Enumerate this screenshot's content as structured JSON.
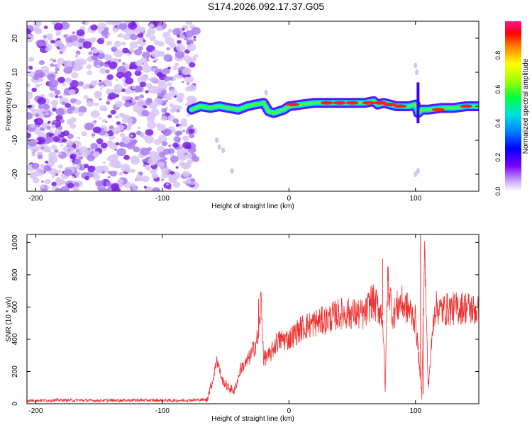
{
  "title": "S174.2026.092.17.37.G05",
  "chart_data": [
    {
      "type": "heatmap",
      "name": "spectrogram",
      "xlabel": "Height of straight line (km)",
      "ylabel": "Frequency (Hz)",
      "xlim": [
        -207,
        150
      ],
      "ylim": [
        -25,
        25
      ],
      "xticks": [
        -200,
        -100,
        0,
        100
      ],
      "yticks": [
        -20,
        -10,
        0,
        10,
        20
      ],
      "noise_region_x": [
        -207,
        -73
      ],
      "signal_trace": {
        "x": [
          -77,
          -70,
          -62,
          -55,
          -48,
          -40,
          -33,
          -27,
          -20,
          -16,
          -12,
          -8,
          -4,
          0,
          10,
          20,
          30,
          40,
          50,
          60,
          67,
          70,
          75,
          80,
          85,
          90,
          95,
          100,
          102,
          105,
          110,
          120,
          130,
          140,
          150
        ],
        "y": [
          -1,
          0,
          -0.5,
          0,
          -0.5,
          -1,
          0,
          0.5,
          1,
          -1.5,
          -2,
          -1.5,
          -1,
          0,
          0.5,
          1,
          1,
          1,
          1,
          1,
          1.5,
          0.5,
          1,
          0.5,
          0,
          0,
          0,
          0.5,
          -2,
          -1,
          -1,
          -0.5,
          -0.5,
          0,
          0
        ]
      },
      "colorbar": {
        "label": "Normalized spectral amplitude",
        "ticks": [
          "0.0",
          "0.2",
          "0.4",
          "0.6",
          "0.8"
        ]
      }
    },
    {
      "type": "line",
      "name": "snr",
      "xlabel": "Height of straight line (km)",
      "ylabel": "SNR (10 * v/v)",
      "xlim": [
        -207,
        150
      ],
      "ylim": [
        0,
        1050
      ],
      "xticks": [
        -200,
        -100,
        0,
        100
      ],
      "yticks": [
        0,
        200,
        400,
        600,
        800,
        1000
      ],
      "series": [
        {
          "name": "SNR",
          "color": "#ee3333",
          "x": [
            -207,
            -180,
            -150,
            -120,
            -90,
            -65,
            -60,
            -57,
            -53,
            -48,
            -43,
            -38,
            -34,
            -30,
            -24,
            -22,
            -20,
            -15,
            -10,
            -5,
            0,
            10,
            20,
            30,
            40,
            50,
            60,
            65,
            70,
            74,
            76,
            78,
            82,
            88,
            95,
            100,
            103,
            105,
            107,
            110,
            115,
            120,
            130,
            140,
            150
          ],
          "y": [
            20,
            22,
            20,
            22,
            20,
            25,
            150,
            280,
            150,
            100,
            80,
            220,
            250,
            300,
            420,
            650,
            280,
            300,
            380,
            400,
            400,
            470,
            500,
            520,
            560,
            560,
            550,
            640,
            600,
            550,
            80,
            780,
            550,
            630,
            580,
            520,
            250,
            50,
            1000,
            100,
            600,
            580,
            590,
            600,
            570
          ]
        }
      ]
    }
  ]
}
